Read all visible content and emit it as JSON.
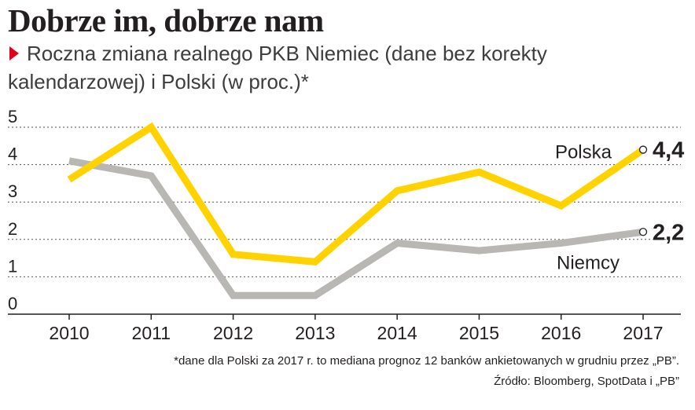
{
  "header": {
    "title": "Dobrze im, dobrze nam",
    "subtitle": "Roczna zmiana realnego PKB Niemiec (dane bez korekty kalendarzowej) i Polski (w proc.)*",
    "marker_color": "#e2001a"
  },
  "footer": {
    "footnote": "*dane dla Polski za 2017 r. to mediana prognoz 12 banków ankietowanych w grudniu przez „PB”.",
    "source": "Źródło: Bloomberg, SpotData i „PB”"
  },
  "chart_data": {
    "type": "line",
    "title": "Roczna zmiana realnego PKB Niemiec (dane bez korekty kalendarzowej) i Polski (w proc.)*",
    "xlabel": "",
    "ylabel": "",
    "categories": [
      "2010",
      "2011",
      "2012",
      "2013",
      "2014",
      "2015",
      "2016",
      "2017"
    ],
    "ylim": [
      0,
      5
    ],
    "yticks": [
      "0",
      "1",
      "2",
      "3",
      "4",
      "5"
    ],
    "grid": "horizontal dotted",
    "series": [
      {
        "name": "Polska",
        "color": "#ffd200",
        "values": [
          3.6,
          5.0,
          1.6,
          1.4,
          3.3,
          3.8,
          2.9,
          4.4
        ],
        "end_label": "4,4"
      },
      {
        "name": "Niemcy",
        "color": "#b8b7b3",
        "values": [
          4.1,
          3.7,
          0.5,
          0.5,
          1.9,
          1.7,
          1.9,
          2.2
        ],
        "end_label": "2,2"
      }
    ]
  }
}
